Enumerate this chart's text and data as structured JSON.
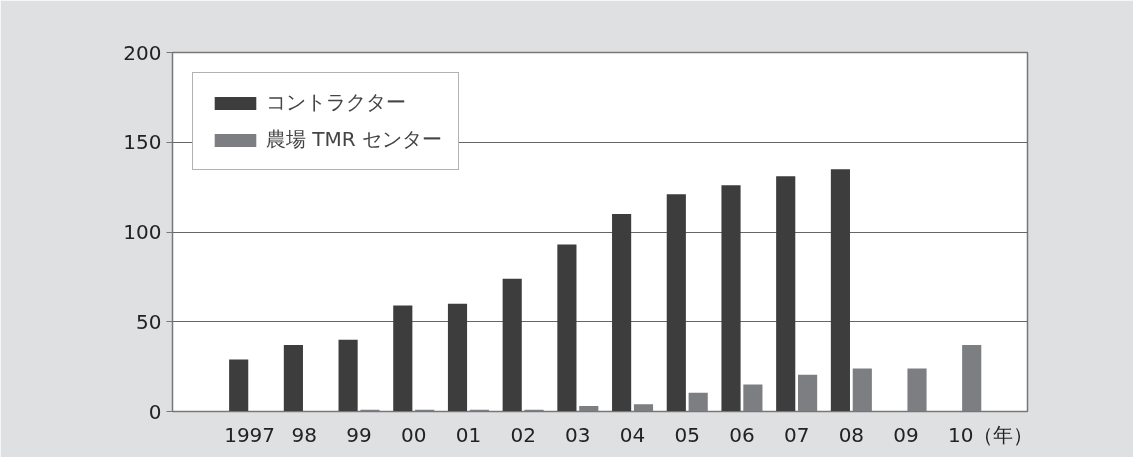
{
  "chart_data": {
    "type": "bar",
    "xlabel": "（年）",
    "categories": [
      "1997",
      "98",
      "99",
      "00",
      "01",
      "02",
      "03",
      "04",
      "05",
      "06",
      "07",
      "08",
      "09",
      "10"
    ],
    "series": [
      {
        "name": "コントラクター",
        "color": "#3d3d3d",
        "values": [
          29,
          37,
          40,
          59,
          60,
          74,
          93,
          110,
          121,
          126,
          131,
          135,
          null,
          null
        ]
      },
      {
        "name": "農場 TMR センター",
        "color": "#7d7e82",
        "values": [
          null,
          null,
          1,
          1,
          1,
          1,
          3,
          4,
          10.5,
          15,
          20.5,
          24,
          24,
          37
        ]
      }
    ],
    "ylim": [
      0,
      200
    ],
    "yticks": [
      0,
      50,
      100,
      150,
      200
    ],
    "grid": "y",
    "legend": "top left"
  }
}
